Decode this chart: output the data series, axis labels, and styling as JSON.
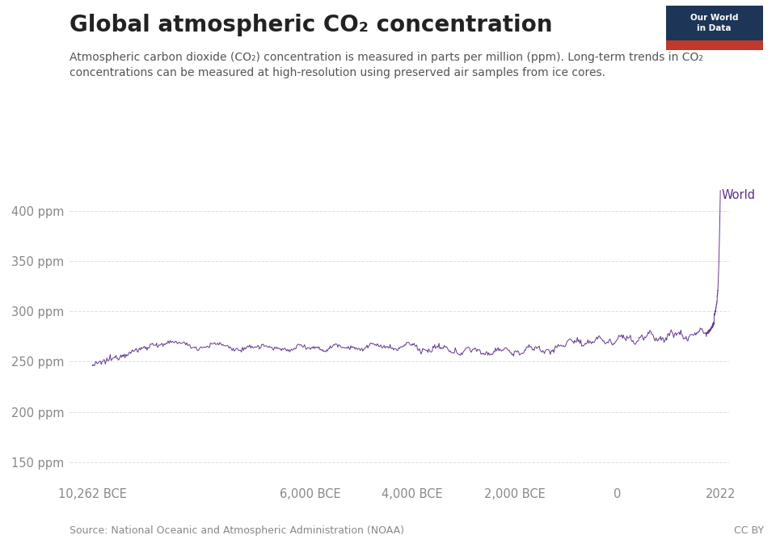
{
  "title": "Global atmospheric CO₂ concentration",
  "subtitle_line1": "Atmospheric carbon dioxide (CO₂) concentration is measured in parts per million (ppm). Long-term trends in CO₂",
  "subtitle_line2": "concentrations can be measured at high-resolution using preserved air samples from ice cores.",
  "ylabel_ticks": [
    "150 ppm",
    "200 ppm",
    "250 ppm",
    "300 ppm",
    "350 ppm",
    "400 ppm"
  ],
  "ytick_values": [
    150,
    200,
    250,
    300,
    350,
    400
  ],
  "xtick_labels": [
    "10,262 BCE",
    "6,000 BCE",
    "4,000 BCE",
    "2,000 BCE",
    "0",
    "2022"
  ],
  "xtick_positions": [
    -10262,
    -6000,
    -4000,
    -2000,
    0,
    2022
  ],
  "xlim": [
    -10700,
    2200
  ],
  "ylim": [
    130,
    435
  ],
  "line_color": "#5c2d8a",
  "legend_label": "World",
  "source_text": "Source: National Oceanic and Atmospheric Administration (NOAA)",
  "cc_text": "CC BY",
  "logo_bg_top": "#1d3557",
  "logo_bg_bottom": "#c0392b",
  "background_color": "#ffffff",
  "grid_color": "#d8d8d8",
  "title_fontsize": 20,
  "subtitle_fontsize": 10,
  "tick_label_fontsize": 10.5,
  "source_fontsize": 9,
  "legend_fontsize": 10.5
}
